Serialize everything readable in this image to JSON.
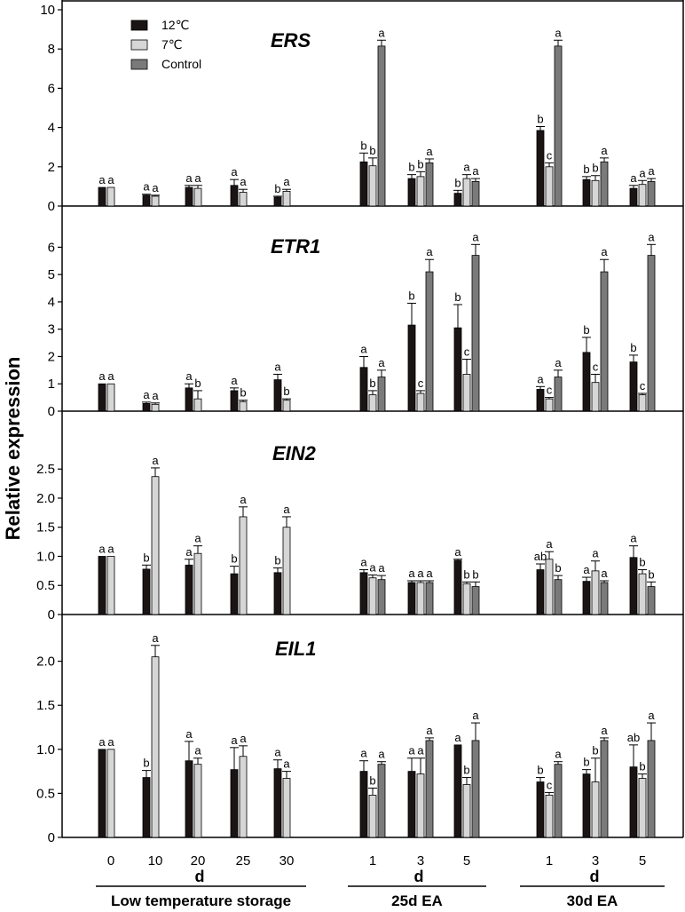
{
  "chart_data": {
    "type": "bar",
    "ylabel": "Relative expression",
    "colors": {
      "12C": "#1a1414",
      "7C": "#d6d6d6",
      "Control": "#7a7a7a"
    },
    "legend": [
      "12℃",
      "7℃",
      "Control"
    ],
    "groups": [
      {
        "label": "Low temperature storage",
        "xlabel": "d",
        "categories": [
          "0",
          "10",
          "20",
          "25",
          "30"
        ]
      },
      {
        "label": "25d EA",
        "xlabel": "d",
        "categories": [
          "1",
          "3",
          "5"
        ]
      },
      {
        "label": "30d EA",
        "xlabel": "d",
        "categories": [
          "1",
          "3",
          "5"
        ]
      }
    ],
    "panels": [
      {
        "title": "ERS",
        "ylim": [
          0,
          10
        ],
        "yticks": [
          "0",
          "2",
          "4",
          "6",
          "8",
          "10"
        ],
        "series": [
          {
            "name": "12℃",
            "values": [
              0.95,
              0.55,
              0.95,
              1.05,
              0.45,
              2.25,
              1.4,
              0.65,
              3.85,
              1.35,
              0.9
            ],
            "errors": [
              0,
              0.05,
              0.1,
              0.3,
              0.05,
              0.45,
              0.2,
              0.15,
              0.2,
              0.15,
              0.15
            ],
            "letters": [
              "a",
              "a",
              "a",
              "a",
              "b",
              "b",
              "b",
              "b",
              "b",
              "b",
              "a"
            ]
          },
          {
            "name": "7℃",
            "values": [
              0.95,
              0.5,
              0.9,
              0.7,
              0.75,
              2.05,
              1.5,
              1.4,
              2.0,
              1.3,
              1.1
            ],
            "errors": [
              0,
              0.05,
              0.15,
              0.15,
              0.1,
              0.4,
              0.25,
              0.2,
              0.2,
              0.25,
              0.2
            ],
            "letters": [
              "a",
              "a",
              "a",
              "a",
              "a",
              "b",
              "b",
              "a",
              "c",
              "b",
              "a"
            ]
          },
          {
            "name": "Control",
            "values": [
              null,
              null,
              null,
              null,
              null,
              8.15,
              2.2,
              1.25,
              8.15,
              2.25,
              1.25
            ],
            "errors": [
              null,
              null,
              null,
              null,
              null,
              0.3,
              0.2,
              0.15,
              0.3,
              0.2,
              0.15
            ],
            "letters": [
              "",
              "",
              "",
              "",
              "",
              "a",
              "a",
              "a",
              "a",
              "a",
              "a"
            ]
          }
        ]
      },
      {
        "title": "ETR1",
        "ylim": [
          0,
          6.5
        ],
        "yticks": [
          "0",
          "1",
          "2",
          "3",
          "4",
          "5",
          "6"
        ],
        "series": [
          {
            "name": "12℃",
            "values": [
              1.0,
              0.28,
              0.85,
              0.75,
              1.15,
              1.6,
              3.15,
              3.05,
              0.8,
              2.15,
              1.8
            ],
            "errors": [
              0,
              0.05,
              0.15,
              0.1,
              0.2,
              0.4,
              0.8,
              0.85,
              0.1,
              0.55,
              0.25
            ],
            "letters": [
              "a",
              "a",
              "a",
              "a",
              "a",
              "a",
              "b",
              "b",
              "a",
              "b",
              "b"
            ]
          },
          {
            "name": "7℃",
            "values": [
              1.0,
              0.25,
              0.45,
              0.35,
              0.4,
              0.6,
              0.65,
              1.35,
              0.45,
              1.05,
              0.6
            ],
            "errors": [
              0,
              0.05,
              0.3,
              0.05,
              0.05,
              0.15,
              0.1,
              0.55,
              0.05,
              0.3,
              0.05
            ],
            "letters": [
              "a",
              "a",
              "b",
              "b",
              "b",
              "b",
              "c",
              "c",
              "c",
              "c",
              "c"
            ]
          },
          {
            "name": "Control",
            "values": [
              null,
              null,
              null,
              null,
              null,
              1.25,
              5.1,
              5.7,
              1.25,
              5.1,
              5.7
            ],
            "errors": [
              null,
              null,
              null,
              null,
              null,
              0.25,
              0.45,
              0.4,
              0.25,
              0.45,
              0.4
            ],
            "letters": [
              "",
              "",
              "",
              "",
              "",
              "a",
              "a",
              "a",
              "a",
              "a",
              "a"
            ]
          }
        ]
      },
      {
        "title": "EIN2",
        "ylim": [
          0,
          2.9
        ],
        "yticks": [
          "0",
          "0.5",
          "1.0",
          "1.5",
          "2.0",
          "2.5"
        ],
        "series": [
          {
            "name": "12℃",
            "values": [
              1.0,
              0.78,
              0.85,
              0.7,
              0.72,
              0.72,
              0.55,
              0.93,
              0.77,
              0.57,
              0.98
            ],
            "errors": [
              0,
              0.07,
              0.1,
              0.13,
              0.08,
              0.05,
              0.03,
              0.02,
              0.1,
              0.07,
              0.2
            ],
            "letters": [
              "a",
              "b",
              "a",
              "b",
              "b",
              "a",
              "a",
              "a",
              "ab",
              "a",
              "a"
            ]
          },
          {
            "name": "7℃",
            "values": [
              1.0,
              2.37,
              1.05,
              1.68,
              1.5,
              0.63,
              0.55,
              0.53,
              0.95,
              0.75,
              0.7
            ],
            "errors": [
              0,
              0.15,
              0.13,
              0.17,
              0.18,
              0.05,
              0.03,
              0.03,
              0.13,
              0.17,
              0.07
            ],
            "letters": [
              "a",
              "a",
              "a",
              "a",
              "a",
              "a",
              "a",
              "b",
              "a",
              "a",
              "b"
            ]
          },
          {
            "name": "Control",
            "values": [
              null,
              null,
              null,
              null,
              null,
              0.6,
              0.55,
              0.48,
              0.6,
              0.55,
              0.48
            ],
            "errors": [
              null,
              null,
              null,
              null,
              null,
              0.07,
              0.03,
              0.08,
              0.07,
              0.03,
              0.08
            ],
            "letters": [
              "",
              "",
              "",
              "",
              "",
              "a",
              "a",
              "b",
              "b",
              "a",
              "b"
            ]
          }
        ]
      },
      {
        "title": "EIL1",
        "ylim": [
          0,
          2.45
        ],
        "yticks": [
          "0",
          "0.5",
          "1.0",
          "1.5",
          "2.0"
        ],
        "series": [
          {
            "name": "12℃",
            "values": [
              1.0,
              0.68,
              0.87,
              0.77,
              0.78,
              0.75,
              0.75,
              1.05,
              0.63,
              0.72,
              0.8
            ],
            "errors": [
              0,
              0.08,
              0.22,
              0.25,
              0.1,
              0.12,
              0.15,
              0.0,
              0.05,
              0.05,
              0.25
            ],
            "letters": [
              "a",
              "b",
              "a",
              "a",
              "a",
              "a",
              "a",
              "a",
              "b",
              "b",
              "ab"
            ]
          },
          {
            "name": "7℃",
            "values": [
              1.0,
              2.05,
              0.83,
              0.92,
              0.67,
              0.48,
              0.72,
              0.6,
              0.48,
              0.63,
              0.67
            ],
            "errors": [
              0,
              0.13,
              0.07,
              0.12,
              0.08,
              0.08,
              0.18,
              0.08,
              0.03,
              0.27,
              0.05
            ],
            "letters": [
              "a",
              "a",
              "a",
              "a",
              "a",
              "b",
              "a",
              "b",
              "c",
              "b",
              "b"
            ]
          },
          {
            "name": "Control",
            "values": [
              null,
              null,
              null,
              null,
              null,
              0.83,
              1.1,
              1.1,
              0.83,
              1.1,
              1.1
            ],
            "errors": [
              null,
              null,
              null,
              null,
              null,
              0.03,
              0.03,
              0.2,
              0.03,
              0.03,
              0.2
            ],
            "letters": [
              "",
              "",
              "",
              "",
              "",
              "a",
              "a",
              "a",
              "a",
              "a",
              "a"
            ]
          }
        ]
      }
    ]
  }
}
